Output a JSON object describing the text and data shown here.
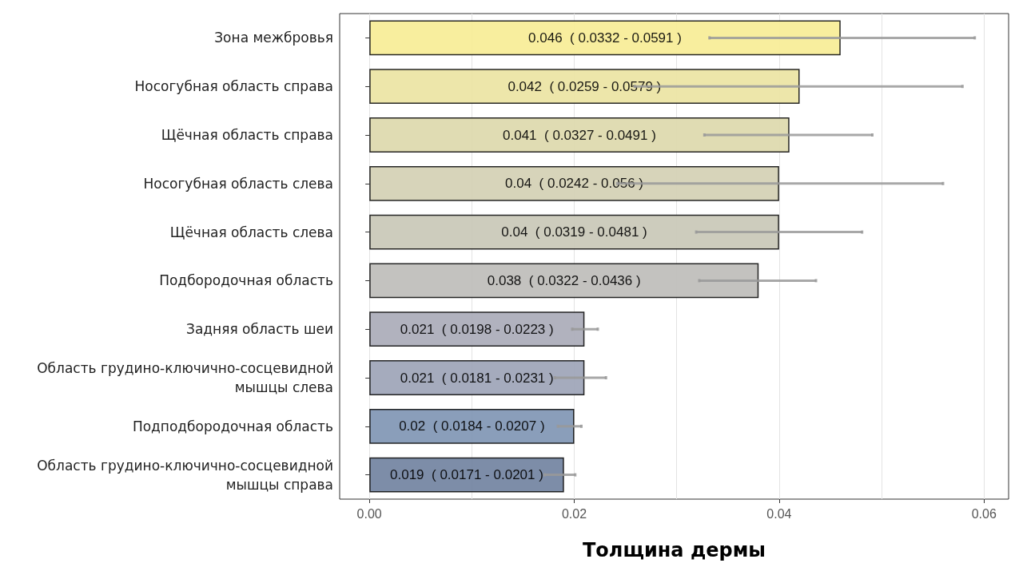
{
  "chart_data": {
    "type": "bar",
    "orientation": "horizontal",
    "xlabel": "Толщина дермы",
    "categories": [
      "Зона межбровья",
      "Носогубная область справа",
      "Щёчная область справа",
      "Носогубная область слева",
      "Щёчная область слева",
      "Подбородочная область",
      "Задняя область шеи",
      "Область грудино-ключично-сосцевидной\nмышцы слева",
      "Подподбородочная область",
      "Область грудино-ключично-сосцевидной\nмышцы справа"
    ],
    "values": [
      0.046,
      0.042,
      0.041,
      0.04,
      0.04,
      0.038,
      0.021,
      0.021,
      0.02,
      0.019
    ],
    "errors": [
      [
        0.0332,
        0.0591
      ],
      [
        0.0259,
        0.0579
      ],
      [
        0.0327,
        0.0491
      ],
      [
        0.0242,
        0.056
      ],
      [
        0.0319,
        0.0481
      ],
      [
        0.0322,
        0.0436
      ],
      [
        0.0198,
        0.0223
      ],
      [
        0.0181,
        0.0231
      ],
      [
        0.0184,
        0.0207
      ],
      [
        0.0171,
        0.0201
      ]
    ],
    "value_labels": [
      "0.046  ( 0.0332 - 0.0591 )",
      "0.042  ( 0.0259 - 0.0579 )",
      "0.041  ( 0.0327 - 0.0491 )",
      "0.04  ( 0.0242 - 0.056 )",
      "0.04  ( 0.0319 - 0.0481 )",
      "0.038  ( 0.0322 - 0.0436 )",
      "0.021  ( 0.0198 - 0.0223 )",
      "0.021  ( 0.0181 - 0.0231 )",
      "0.02  ( 0.0184 - 0.0207 )",
      "0.019  ( 0.0171 - 0.0201 )"
    ],
    "colors": [
      "#f7ec93",
      "#ebe3a1",
      "#ddd8ab",
      "#d3cfb2",
      "#c8c6b6",
      "#bcbbb8",
      "#a8aab7",
      "#9ba2b6",
      "#7d93b3",
      "#6f819f"
    ],
    "xlim": [
      -0.0029,
      0.0624
    ],
    "xticks": [
      {
        "value": 0,
        "label": "0.00"
      },
      {
        "value": 0.01,
        "label": null
      },
      {
        "value": 0.02,
        "label": "0.02"
      },
      {
        "value": 0.03,
        "label": null
      },
      {
        "value": 0.04,
        "label": "0.04"
      },
      {
        "value": 0.05,
        "label": null
      },
      {
        "value": 0.06,
        "label": "0.06"
      }
    ],
    "grid": true
  }
}
